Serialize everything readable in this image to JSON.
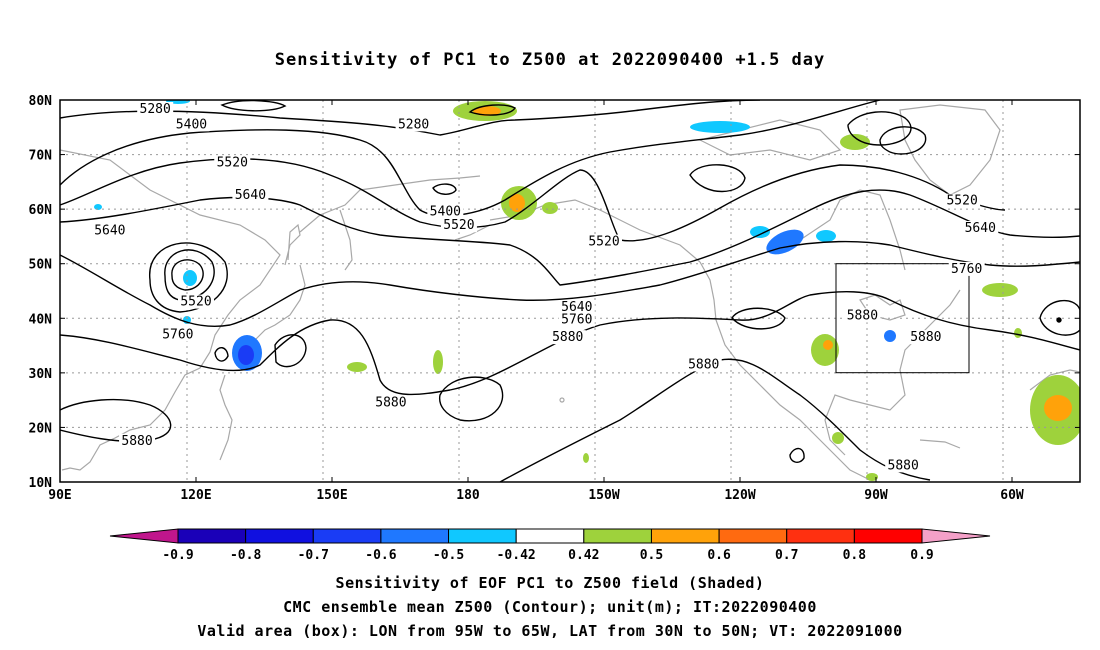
{
  "title": "Sensitivity of PC1 to Z500 at 2022090400 +1.5 day",
  "lat_labels": [
    "80N",
    "70N",
    "60N",
    "50N",
    "40N",
    "30N",
    "20N",
    "10N"
  ],
  "lon_labels": [
    "90E",
    "120E",
    "150E",
    "180",
    "150W",
    "120W",
    "90W",
    "60W"
  ],
  "contour_labels": [
    {
      "text": "5280",
      "lon": 111,
      "lat": 77.8
    },
    {
      "text": "5400",
      "lon": 119,
      "lat": 75.0
    },
    {
      "text": "5520",
      "lon": 128,
      "lat": 68.0
    },
    {
      "text": "5640",
      "lon": 132,
      "lat": 62.0
    },
    {
      "text": "5640",
      "lon": 101,
      "lat": 55.5
    },
    {
      "text": "5520",
      "lon": 120,
      "lat": 42.5
    },
    {
      "text": "5760",
      "lon": 116,
      "lat": 36.5
    },
    {
      "text": "5880",
      "lon": 163,
      "lat": 24.0
    },
    {
      "text": "5880",
      "lon": 107,
      "lat": 17.0
    },
    {
      "text": "5280",
      "lon": 168,
      "lat": 75.0
    },
    {
      "text": "5400",
      "lon": 175,
      "lat": 59.0
    },
    {
      "text": "5520",
      "lon": 178,
      "lat": 56.5
    },
    {
      "text": "5520",
      "lon": -150,
      "lat": 53.5
    },
    {
      "text": "5640",
      "lon": -156,
      "lat": 41.5
    },
    {
      "text": "5760",
      "lon": -156,
      "lat": 39.2
    },
    {
      "text": "5880",
      "lon": -158,
      "lat": 36.0
    },
    {
      "text": "5880",
      "lon": -128,
      "lat": 31.0
    },
    {
      "text": "5880",
      "lon": -93,
      "lat": 40.0
    },
    {
      "text": "5880",
      "lon": -79,
      "lat": 36.0
    },
    {
      "text": "5760",
      "lon": -70,
      "lat": 48.5
    },
    {
      "text": "5520",
      "lon": -71,
      "lat": 61.0
    },
    {
      "text": "5640",
      "lon": -67,
      "lat": 56.0
    },
    {
      "text": "5880",
      "lon": -84,
      "lat": 12.5
    }
  ],
  "colorbar": {
    "labels": [
      "-0.9",
      "-0.8",
      "-0.7",
      "-0.6",
      "-0.5",
      "-0.42",
      "0.42",
      "0.5",
      "0.6",
      "0.7",
      "0.8",
      "0.9"
    ],
    "colors": [
      "#1a00b8",
      "#1010e0",
      "#1a3cf5",
      "#1f78ff",
      "#10c8ff",
      "#ffffff",
      "#9ed23c",
      "#ffa20a",
      "#ff6a10",
      "#ff3010",
      "#ff0000"
    ],
    "low_end_color": "#c0168c",
    "high_end_color": "#f4a0c8"
  },
  "valid_box": {
    "lon_min": -95,
    "lon_max": -65,
    "lat_min": 30,
    "lat_max": 50
  },
  "caption": [
    "Sensitivity of EOF PC1 to Z500 field (Shaded)",
    "CMC ensemble mean Z500 (Contour); unit(m); IT:2022090400",
    "Valid area (box): LON from 95W to 65W, LAT from 30N to 50N; VT: 2022091000"
  ]
}
